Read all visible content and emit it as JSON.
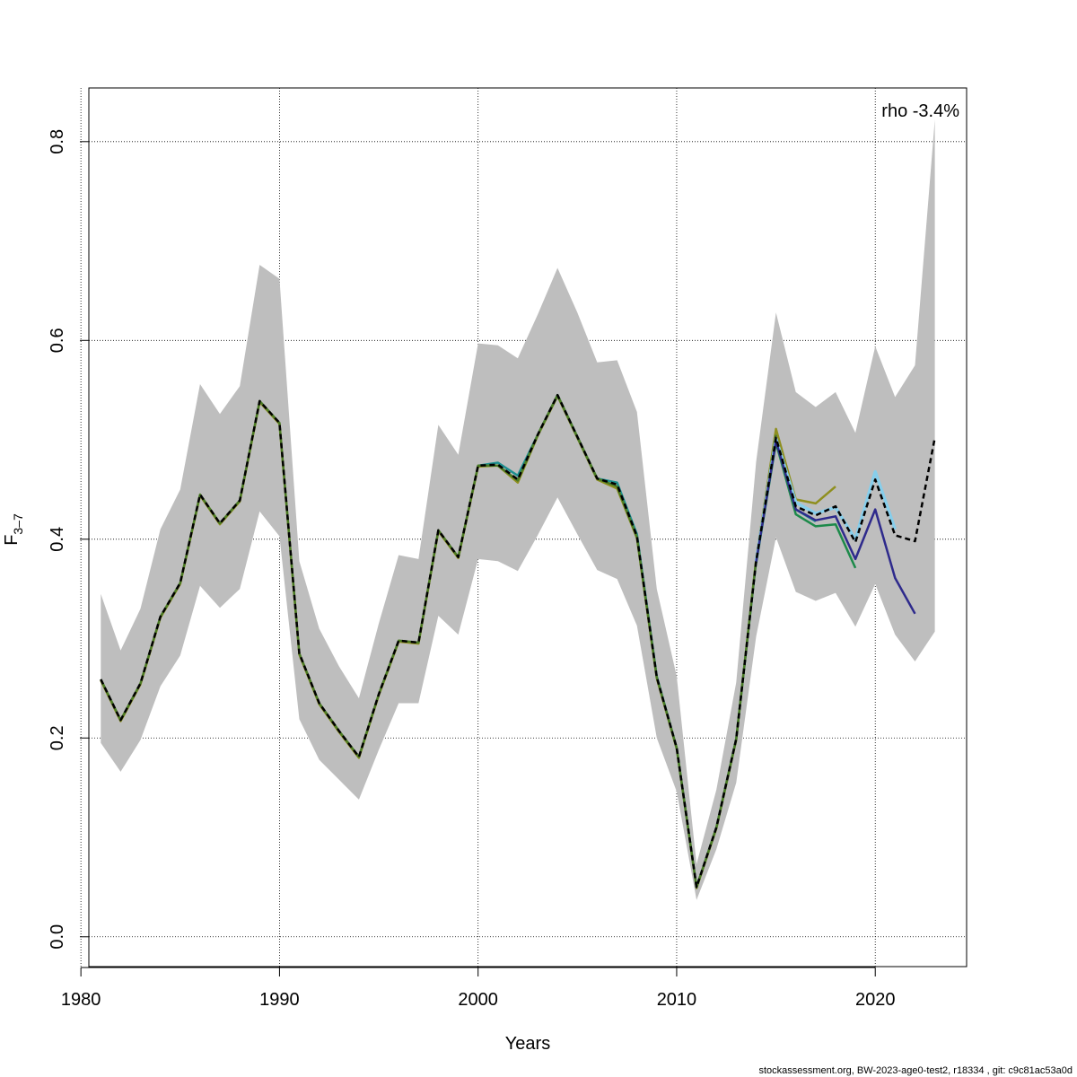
{
  "chart_data": {
    "type": "line",
    "xlabel": "Years",
    "ylabel_main": "F",
    "ylabel_sub": "3–7",
    "annotation": "rho -3.4%",
    "footer": "stockassessment.org, BW-2023-age0-test2, r18334 , git: c9c81ac53a0d",
    "xlim": [
      1980.4,
      2024.6
    ],
    "ylim": [
      -0.03,
      0.854
    ],
    "x_ticks": [
      1980,
      1990,
      2000,
      2010,
      2020
    ],
    "y_ticks": [
      0.0,
      0.2,
      0.4,
      0.6,
      0.8
    ],
    "y_tick_labels": [
      "0.0",
      "0.2",
      "0.4",
      "0.6",
      "0.8"
    ],
    "grid": true,
    "colors": {
      "band": "#bebebe",
      "base": "#000000",
      "peel1": "#87ceeb",
      "peel2": "#1d8a4a",
      "peel3": "#2e2a8c",
      "peel4": "#8f8f1f",
      "peel5": "#1e9090",
      "peel6": "#4a7a24"
    },
    "band": {
      "x": [
        1981,
        1982,
        1983,
        1984,
        1985,
        1986,
        1987,
        1988,
        1989,
        1990,
        1991,
        1992,
        1993,
        1994,
        1995,
        1996,
        1997,
        1998,
        1999,
        2000,
        2001,
        2002,
        2003,
        2004,
        2005,
        2006,
        2007,
        2008,
        2009,
        2010,
        2011,
        2012,
        2013,
        2014,
        2015,
        2016,
        2017,
        2018,
        2019,
        2020,
        2021,
        2022,
        2023
      ],
      "upper": [
        0.345,
        0.288,
        0.33,
        0.41,
        0.45,
        0.556,
        0.526,
        0.554,
        0.676,
        0.662,
        0.378,
        0.31,
        0.272,
        0.24,
        0.315,
        0.384,
        0.38,
        0.515,
        0.485,
        0.597,
        0.595,
        0.582,
        0.626,
        0.673,
        0.628,
        0.578,
        0.58,
        0.528,
        0.35,
        0.262,
        0.073,
        0.148,
        0.256,
        0.478,
        0.628,
        0.548,
        0.533,
        0.548,
        0.507,
        0.594,
        0.543,
        0.575,
        0.822
      ],
      "lower": [
        0.195,
        0.166,
        0.198,
        0.252,
        0.283,
        0.353,
        0.331,
        0.35,
        0.428,
        0.403,
        0.219,
        0.178,
        0.158,
        0.138,
        0.188,
        0.235,
        0.235,
        0.323,
        0.304,
        0.38,
        0.378,
        0.368,
        0.404,
        0.442,
        0.405,
        0.369,
        0.36,
        0.313,
        0.2,
        0.146,
        0.037,
        0.088,
        0.155,
        0.302,
        0.402,
        0.347,
        0.338,
        0.346,
        0.312,
        0.355,
        0.304,
        0.277,
        0.307
      ]
    },
    "series": [
      {
        "key": "base",
        "x": [
          1981,
          1982,
          1983,
          1984,
          1985,
          1986,
          1987,
          1988,
          1989,
          1990,
          1991,
          1992,
          1993,
          1994,
          1995,
          1996,
          1997,
          1998,
          1999,
          2000,
          2001,
          2002,
          2003,
          2004,
          2005,
          2006,
          2007,
          2008,
          2009,
          2010,
          2011,
          2012,
          2013,
          2014,
          2015,
          2016,
          2017,
          2018,
          2019,
          2020,
          2021,
          2022,
          2023
        ],
        "values": [
          0.259,
          0.218,
          0.255,
          0.322,
          0.356,
          0.445,
          0.416,
          0.439,
          0.539,
          0.517,
          0.285,
          0.235,
          0.207,
          0.181,
          0.244,
          0.298,
          0.296,
          0.409,
          0.382,
          0.474,
          0.475,
          0.46,
          0.505,
          0.545,
          0.503,
          0.461,
          0.455,
          0.403,
          0.261,
          0.19,
          0.05,
          0.11,
          0.199,
          0.378,
          0.502,
          0.433,
          0.424,
          0.433,
          0.397,
          0.46,
          0.404,
          0.398,
          0.502
        ]
      },
      {
        "key": "peel1",
        "x": [
          2014,
          2015,
          2016,
          2017,
          2018,
          2019,
          2020,
          2021
        ],
        "values": [
          0.378,
          0.501,
          0.437,
          0.426,
          0.432,
          0.4,
          0.468,
          0.41
        ]
      },
      {
        "key": "peel2",
        "x": [
          2014,
          2015,
          2016,
          2017,
          2018,
          2019
        ],
        "values": [
          0.376,
          0.497,
          0.425,
          0.413,
          0.415,
          0.371
        ]
      },
      {
        "key": "peel3",
        "x": [
          2014,
          2015,
          2016,
          2017,
          2018,
          2019,
          2020,
          2021,
          2022
        ],
        "values": [
          0.377,
          0.499,
          0.43,
          0.419,
          0.423,
          0.38,
          0.43,
          0.361,
          0.325
        ]
      },
      {
        "key": "peel4",
        "x": [
          1981,
          1982,
          1983,
          1984,
          1985,
          1986,
          1987,
          1988,
          1989,
          1990,
          1991,
          1992,
          1993,
          1994,
          1995,
          1996,
          1997,
          1998,
          1999,
          2000,
          2001,
          2002,
          2003,
          2004,
          2005,
          2006,
          2007,
          2008,
          2009,
          2010,
          2011,
          2012,
          2013,
          2014,
          2015,
          2016,
          2017,
          2018
        ],
        "values": [
          0.258,
          0.217,
          0.254,
          0.321,
          0.355,
          0.444,
          0.415,
          0.438,
          0.538,
          0.516,
          0.284,
          0.234,
          0.206,
          0.18,
          0.243,
          0.297,
          0.295,
          0.408,
          0.381,
          0.473,
          0.474,
          0.457,
          0.504,
          0.544,
          0.502,
          0.46,
          0.451,
          0.401,
          0.26,
          0.189,
          0.049,
          0.109,
          0.198,
          0.38,
          0.511,
          0.44,
          0.436,
          0.453
        ]
      },
      {
        "key": "peel5",
        "x": [
          2000,
          2001,
          2002,
          2003,
          2004,
          2005,
          2006,
          2007,
          2008,
          2009,
          2010,
          2011,
          2012,
          2013,
          2014,
          2015,
          2016,
          2017
        ],
        "values": [
          0.474,
          0.477,
          0.464,
          0.505,
          0.545,
          0.503,
          0.461,
          0.457,
          0.405,
          0.262,
          0.19,
          0.05,
          0.11,
          0.199,
          0.378,
          0.5,
          0.43,
          0.418
        ]
      },
      {
        "key": "peel6",
        "x": [
          1981,
          1982,
          1983,
          1984,
          1985,
          1986,
          1987,
          1988,
          1989,
          1990,
          1991,
          1992,
          1993,
          1994,
          1995,
          1996,
          1997,
          1998,
          1999,
          2000,
          2001,
          2002,
          2003,
          2004,
          2005,
          2006,
          2007,
          2008,
          2009,
          2010,
          2011,
          2012,
          2013,
          2014,
          2015
        ],
        "values": [
          0.259,
          0.218,
          0.255,
          0.322,
          0.356,
          0.445,
          0.416,
          0.439,
          0.539,
          0.517,
          0.285,
          0.235,
          0.207,
          0.181,
          0.244,
          0.298,
          0.296,
          0.409,
          0.382,
          0.474,
          0.474,
          0.459,
          0.505,
          0.545,
          0.503,
          0.461,
          0.453,
          0.402,
          0.261,
          0.19,
          0.05,
          0.11,
          0.199,
          0.379,
          0.505
        ]
      }
    ]
  }
}
